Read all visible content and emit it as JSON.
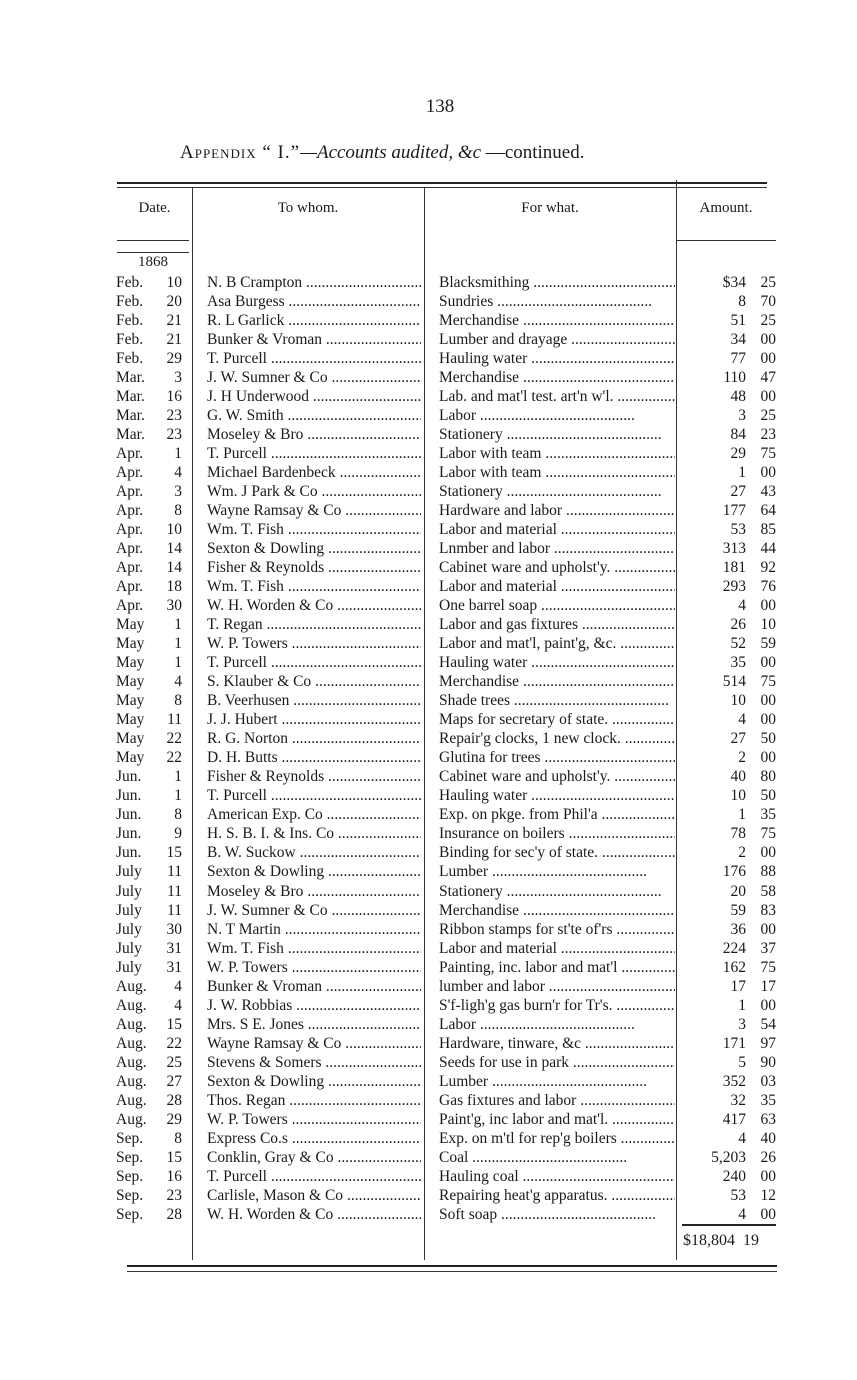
{
  "page_number": "138",
  "title": {
    "appendix": "Appendix “ I.”",
    "subject": "—Accounts audited, &c",
    "suffix": " —continued."
  },
  "headers": {
    "date": "Date.",
    "to_whom": "To whom.",
    "for_what": "For what.",
    "amount": "Amount."
  },
  "year": "1868",
  "rows": [
    {
      "month": "Feb.",
      "day": "10",
      "to": "N. B Crampton",
      "for": "Blacksmithing",
      "dollars": "$34",
      "cents": "25"
    },
    {
      "month": "Feb.",
      "day": "20",
      "to": "Asa Burgess",
      "for": "Sundries",
      "dollars": "8",
      "cents": "70"
    },
    {
      "month": "Feb.",
      "day": "21",
      "to": "R. L  Garlick",
      "for": "Merchandise",
      "dollars": "51",
      "cents": "25"
    },
    {
      "month": "Feb.",
      "day": "21",
      "to": "Bunker & Vroman",
      "for": "Lumber and drayage",
      "dollars": "34",
      "cents": "00"
    },
    {
      "month": "Feb.",
      "day": "29",
      "to": "T. Purcell",
      "for": "Hauling water",
      "dollars": "77",
      "cents": "00"
    },
    {
      "month": "Mar.",
      "day": "3",
      "to": "J. W. Sumner & Co",
      "for": "Merchandise",
      "dollars": "110",
      "cents": "47"
    },
    {
      "month": "Mar.",
      "day": "16",
      "to": "J. H Underwood",
      "for": "Lab. and mat'l test. art'n w'l.",
      "dollars": "48",
      "cents": "00"
    },
    {
      "month": "Mar.",
      "day": "23",
      "to": "G. W. Smith",
      "for": "Labor",
      "dollars": "3",
      "cents": "25"
    },
    {
      "month": "Mar.",
      "day": "23",
      "to": "Moseley & Bro",
      "for": "Stationery",
      "dollars": "84",
      "cents": "23"
    },
    {
      "month": "Apr.",
      "day": "1",
      "to": "T. Purcell",
      "for": "Labor with team",
      "dollars": "29",
      "cents": "75"
    },
    {
      "month": "Apr.",
      "day": "4",
      "to": "Michael Bardenbeck",
      "for": "Labor with team",
      "dollars": "1",
      "cents": "00"
    },
    {
      "month": "Apr.",
      "day": "3",
      "to": "Wm. J Park & Co",
      "for": "Stationery",
      "dollars": "27",
      "cents": "43"
    },
    {
      "month": "Apr.",
      "day": "8",
      "to": "Wayne Ramsay & Co",
      "for": "Hardware and labor",
      "dollars": "177",
      "cents": "64"
    },
    {
      "month": "Apr.",
      "day": "10",
      "to": "Wm. T. Fish",
      "for": "Labor and material",
      "dollars": "53",
      "cents": "85"
    },
    {
      "month": "Apr.",
      "day": "14",
      "to": "Sexton & Dowling",
      "for": "Lnmber and labor",
      "dollars": "313",
      "cents": "44"
    },
    {
      "month": "Apr.",
      "day": "14",
      "to": "Fisher & Reynolds",
      "for": "Cabinet ware and upholst'y.",
      "dollars": "181",
      "cents": "92"
    },
    {
      "month": "Apr.",
      "day": "18",
      "to": "Wm. T. Fish",
      "for": "Labor and material",
      "dollars": "293",
      "cents": "76"
    },
    {
      "month": "Apr.",
      "day": "30",
      "to": "W. H. Worden & Co",
      "for": "One barrel soap",
      "dollars": "4",
      "cents": "00"
    },
    {
      "month": "May",
      "day": "1",
      "to": "T. Regan",
      "for": "Labor and gas fixtures",
      "dollars": "26",
      "cents": "10"
    },
    {
      "month": "May",
      "day": "1",
      "to": "W. P. Towers",
      "for": "Labor and mat'l, paint'g, &c.",
      "dollars": "52",
      "cents": "59"
    },
    {
      "month": "May",
      "day": "1",
      "to": "T. Purcell",
      "for": "Hauling water",
      "dollars": "35",
      "cents": "00"
    },
    {
      "month": "May",
      "day": "4",
      "to": "S. Klauber & Co",
      "for": "Merchandise",
      "dollars": "514",
      "cents": "75"
    },
    {
      "month": "May",
      "day": "8",
      "to": "B. Veerhusen",
      "for": "Shade trees",
      "dollars": "10",
      "cents": "00"
    },
    {
      "month": "May",
      "day": "11",
      "to": "J. J. Hubert",
      "for": "Maps for secretary of state.",
      "dollars": "4",
      "cents": "00"
    },
    {
      "month": "May",
      "day": "22",
      "to": "R. G. Norton",
      "for": "Repair'g clocks, 1 new clock.",
      "dollars": "27",
      "cents": "50"
    },
    {
      "month": "May",
      "day": "22",
      "to": "D. H. Butts",
      "for": "Glutina for trees",
      "dollars": "2",
      "cents": "00"
    },
    {
      "month": "Jun.",
      "day": "1",
      "to": "Fisher & Reynolds",
      "for": "Cabinet ware and upholst'y.",
      "dollars": "40",
      "cents": "80"
    },
    {
      "month": "Jun.",
      "day": "1",
      "to": "T. Purcell",
      "for": "Hauling water",
      "dollars": "10",
      "cents": "50"
    },
    {
      "month": "Jun.",
      "day": "8",
      "to": "American Exp. Co",
      "for": "Exp. on pkge. from Phil'a",
      "dollars": "1",
      "cents": "35"
    },
    {
      "month": "Jun.",
      "day": "9",
      "to": "H. S. B. I. & Ins. Co",
      "for": "Insurance on boilers",
      "dollars": "78",
      "cents": "75"
    },
    {
      "month": "Jun.",
      "day": "15",
      "to": "B. W. Suckow",
      "for": "Binding for sec'y of state.",
      "dollars": "2",
      "cents": "00"
    },
    {
      "month": "July",
      "day": "11",
      "to": "Sexton & Dowling",
      "for": "Lumber",
      "dollars": "176",
      "cents": "88"
    },
    {
      "month": "July",
      "day": "11",
      "to": "Moseley & Bro",
      "for": "Stationery",
      "dollars": "20",
      "cents": "58"
    },
    {
      "month": "July",
      "day": "11",
      "to": "J. W. Sumner & Co",
      "for": "Merchandise",
      "dollars": "59",
      "cents": "83"
    },
    {
      "month": "July",
      "day": "30",
      "to": "N. T  Martin",
      "for": "Ribbon stamps for st'te of'rs",
      "dollars": "36",
      "cents": "00"
    },
    {
      "month": "July",
      "day": "31",
      "to": "Wm. T. Fish",
      "for": "Labor and material",
      "dollars": "224",
      "cents": "37"
    },
    {
      "month": "July",
      "day": "31",
      "to": "W. P. Towers",
      "for": "Painting, inc. labor and mat'l",
      "dollars": "162",
      "cents": "75"
    },
    {
      "month": "Aug.",
      "day": "4",
      "to": "Bunker & Vroman",
      "for": "lumber and labor",
      "dollars": "17",
      "cents": "17"
    },
    {
      "month": "Aug.",
      "day": "4",
      "to": "J. W. Robbias",
      "for": "S'f-ligh'g gas burn'r for Tr's.",
      "dollars": "1",
      "cents": "00"
    },
    {
      "month": "Aug.",
      "day": "15",
      "to": "Mrs. S  E. Jones",
      "for": "Labor",
      "dollars": "3",
      "cents": "54"
    },
    {
      "month": "Aug.",
      "day": "22",
      "to": "Wayne  Ramsay & Co",
      "for": "Hardware, tinware, &c",
      "dollars": "171",
      "cents": "97"
    },
    {
      "month": "Aug.",
      "day": "25",
      "to": "Stevens & Somers",
      "for": "Seeds for use in park",
      "dollars": "5",
      "cents": "90"
    },
    {
      "month": "Aug.",
      "day": "27",
      "to": "Sexton & Dowling",
      "for": "Lumber",
      "dollars": "352",
      "cents": "03"
    },
    {
      "month": "Aug.",
      "day": "28",
      "to": "Thos. Regan",
      "for": "Gas fixtures and labor",
      "dollars": "32",
      "cents": "35"
    },
    {
      "month": "Aug.",
      "day": "29",
      "to": "W. P. Towers",
      "for": "Paint'g, inc labor and mat'l.",
      "dollars": "417",
      "cents": "63"
    },
    {
      "month": "Sep.",
      "day": "8",
      "to": "Express Co.s",
      "for": "Exp. on m'tl for rep'g boilers",
      "dollars": "4",
      "cents": "40"
    },
    {
      "month": "Sep.",
      "day": "15",
      "to": "Conklin, Gray & Co",
      "for": "Coal",
      "dollars": "5,203",
      "cents": "26"
    },
    {
      "month": "Sep.",
      "day": "16",
      "to": "T. Purcell",
      "for": "Hauling coal",
      "dollars": "240",
      "cents": "00"
    },
    {
      "month": "Sep.",
      "day": "23",
      "to": "Carlisle, Mason & Co",
      "for": "Repairing heat'g apparatus.",
      "dollars": "53",
      "cents": "12"
    },
    {
      "month": "Sep.",
      "day": "28",
      "to": "W. H. Worden & Co",
      "for": "Soft soap",
      "dollars": "4",
      "cents": "00"
    }
  ],
  "total": {
    "dollars": "$18,804",
    "cents": "19"
  }
}
